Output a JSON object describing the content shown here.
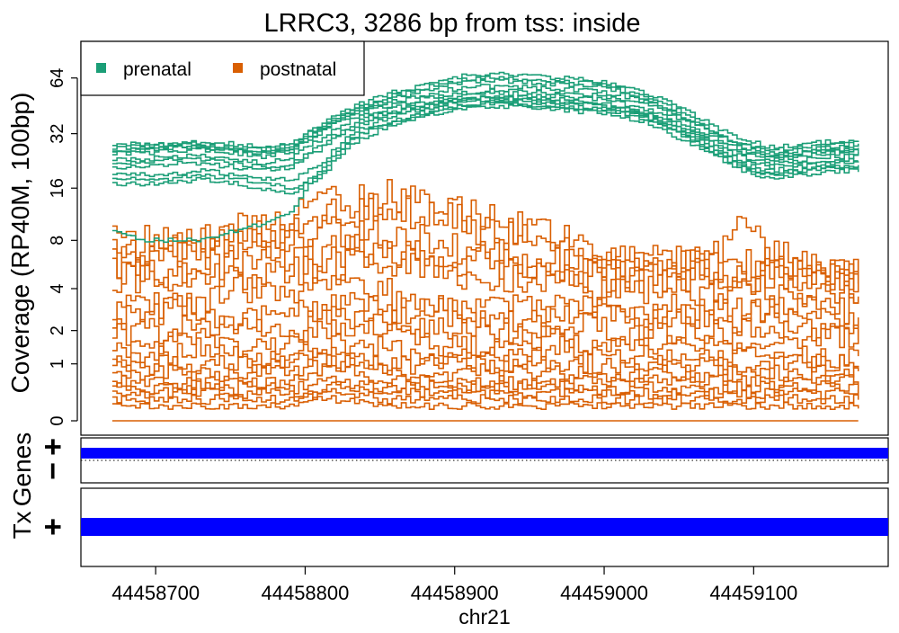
{
  "chart_data": {
    "type": "line",
    "title": "LRRC3, 3286 bp from tss: inside",
    "ylabel": "Coverage (RP40M, 100bp)",
    "xlabel": "chr21",
    "x_range": [
      44458650,
      44459190
    ],
    "x_ticks": [
      44458700,
      44458800,
      44458900,
      44459000,
      44459100
    ],
    "x_tick_labels": [
      "44458700",
      "44458800",
      "44458900",
      "44459000",
      "44459100"
    ],
    "y_scale": "log2(x+1)",
    "y_ticks": [
      0,
      1,
      2,
      4,
      8,
      16,
      32,
      64
    ],
    "y_tick_labels": [
      "0",
      "1",
      "2",
      "4",
      "8",
      "16",
      "32",
      "64"
    ],
    "ylim": [
      0,
      90
    ],
    "x_start": 44458671,
    "x_end": 44459170,
    "legend": {
      "placement": "top-left",
      "entries": [
        {
          "label": "prenatal",
          "color": "#1B9E77"
        },
        {
          "label": "postnatal",
          "color": "#D95F02"
        }
      ]
    },
    "series": [
      {
        "group": "prenatal",
        "color": "#1B9E77",
        "values": [
          27,
          27,
          28,
          28,
          27,
          26,
          28,
          36,
          44,
          52,
          56,
          64,
          66,
          67,
          66,
          64,
          62,
          58,
          52,
          44,
          36,
          30,
          27,
          28,
          29,
          29
        ]
      },
      {
        "group": "prenatal",
        "color": "#1B9E77",
        "values": [
          26,
          26,
          27,
          27,
          26,
          25,
          27,
          34,
          42,
          50,
          54,
          61,
          63,
          64,
          63,
          61,
          60,
          56,
          50,
          42,
          34,
          28,
          25,
          26,
          27,
          27
        ]
      },
      {
        "group": "prenatal",
        "color": "#1B9E77",
        "values": [
          25,
          25,
          26,
          26,
          25,
          24,
          26,
          33,
          41,
          48,
          52,
          59,
          61,
          62,
          61,
          59,
          58,
          54,
          48,
          40,
          33,
          27,
          24,
          25,
          26,
          26
        ]
      },
      {
        "group": "prenatal",
        "color": "#1B9E77",
        "values": [
          28,
          28,
          28,
          29,
          28,
          27,
          29,
          35,
          43,
          47,
          50,
          55,
          57,
          58,
          57,
          56,
          55,
          52,
          47,
          40,
          33,
          28,
          26,
          27,
          28,
          28
        ]
      },
      {
        "group": "prenatal",
        "color": "#1B9E77",
        "values": [
          26,
          26,
          27,
          27,
          26,
          25,
          27,
          33,
          40,
          45,
          48,
          52,
          54,
          55,
          54,
          53,
          52,
          49,
          45,
          38,
          31,
          26,
          24,
          25,
          26,
          26
        ]
      },
      {
        "group": "prenatal",
        "color": "#1B9E77",
        "values": [
          23,
          23,
          24,
          24,
          23,
          22,
          24,
          30,
          38,
          43,
          46,
          50,
          52,
          53,
          52,
          51,
          50,
          47,
          43,
          36,
          30,
          25,
          23,
          24,
          25,
          25
        ]
      },
      {
        "group": "prenatal",
        "color": "#1B9E77",
        "values": [
          22,
          22,
          23,
          23,
          22,
          21,
          22,
          28,
          36,
          41,
          44,
          48,
          50,
          51,
          50,
          49,
          48,
          45,
          41,
          35,
          29,
          24,
          22,
          23,
          24,
          24
        ]
      },
      {
        "group": "prenatal",
        "color": "#1B9E77",
        "values": [
          21,
          21,
          22,
          22,
          21,
          20,
          21,
          27,
          34,
          40,
          43,
          47,
          49,
          50,
          49,
          48,
          47,
          44,
          40,
          34,
          28,
          23,
          21,
          22,
          23,
          23
        ]
      },
      {
        "group": "prenatal",
        "color": "#1B9E77",
        "values": [
          19,
          19,
          19,
          20,
          19,
          18,
          18,
          22,
          32,
          38,
          42,
          46,
          48,
          49,
          48,
          47,
          46,
          43,
          39,
          33,
          27,
          22,
          20,
          21,
          22,
          22
        ]
      },
      {
        "group": "prenatal",
        "color": "#1B9E77",
        "values": [
          18,
          18,
          18,
          19,
          18,
          17,
          16,
          20,
          30,
          36,
          40,
          44,
          46,
          47,
          46,
          45,
          44,
          42,
          38,
          32,
          26,
          21,
          19,
          20,
          21,
          21
        ]
      },
      {
        "group": "prenatal",
        "color": "#1B9E77",
        "values": [
          17,
          17,
          17,
          18,
          17,
          16,
          15,
          19,
          28,
          34,
          38,
          42,
          44,
          45,
          44,
          43,
          42,
          40,
          36,
          30,
          25,
          20,
          18,
          19,
          20,
          20
        ]
      },
      {
        "group": "prenatal",
        "color": "#1B9E77",
        "values": [
          9,
          8,
          8,
          8,
          9,
          10,
          12,
          20,
          30,
          36,
          40,
          44,
          46,
          47,
          46,
          45,
          44,
          42,
          38,
          32,
          26,
          21,
          19,
          20,
          21,
          21
        ]
      },
      {
        "group": "postnatal",
        "color": "#D95F02",
        "values": [
          7,
          7,
          8,
          8,
          9,
          10,
          11,
          13,
          14,
          15,
          14,
          13,
          11,
          10,
          9,
          8,
          7,
          6,
          6,
          6,
          6,
          6,
          6,
          5,
          5,
          5
        ]
      },
      {
        "group": "postnatal",
        "color": "#D95F02",
        "values": [
          6,
          6,
          7,
          7,
          8,
          9,
          10,
          11,
          12,
          12,
          12,
          11,
          10,
          9,
          8,
          7,
          6,
          6,
          5,
          5,
          5,
          5,
          5,
          5,
          5,
          5
        ]
      },
      {
        "group": "postnatal",
        "color": "#D95F02",
        "values": [
          8,
          8,
          8,
          8,
          8,
          8,
          8,
          9,
          9,
          9,
          8,
          8,
          7,
          7,
          6,
          6,
          6,
          6,
          6,
          6,
          6,
          9,
          7,
          6,
          5,
          5
        ]
      },
      {
        "group": "postnatal",
        "color": "#D95F02",
        "values": [
          5,
          5,
          5,
          6,
          6,
          6,
          6,
          7,
          7,
          7,
          7,
          6,
          6,
          6,
          5,
          5,
          5,
          5,
          5,
          5,
          5,
          5,
          5,
          5,
          5,
          5
        ]
      },
      {
        "group": "postnatal",
        "color": "#D95F02",
        "values": [
          5,
          5,
          5,
          5,
          5,
          5,
          5,
          6,
          6,
          6,
          6,
          5,
          5,
          5,
          5,
          5,
          4,
          4,
          4,
          4,
          4,
          4,
          4,
          4,
          4,
          4
        ]
      },
      {
        "group": "postnatal",
        "color": "#D95F02",
        "values": [
          3,
          3,
          3,
          3,
          4,
          4,
          4,
          4,
          4,
          4,
          3,
          3,
          3,
          3,
          3,
          3,
          3,
          3,
          3,
          3,
          3,
          3,
          3,
          3,
          3,
          3
        ]
      },
      {
        "group": "postnatal",
        "color": "#D95F02",
        "values": [
          2.5,
          2.5,
          3,
          3,
          2.5,
          2.5,
          3,
          3,
          3,
          3,
          3,
          3,
          2.5,
          2.5,
          2.5,
          3,
          3,
          2.5,
          2.5,
          2.5,
          2.5,
          2.5,
          3,
          3,
          2.5,
          2.5
        ]
      },
      {
        "group": "postnatal",
        "color": "#D95F02",
        "values": [
          2,
          2,
          2,
          2.5,
          2,
          2,
          2,
          2.5,
          2.5,
          2.5,
          2,
          2,
          2,
          2,
          2,
          2,
          2.5,
          2,
          2,
          2,
          2,
          2,
          2,
          2,
          2,
          2
        ]
      },
      {
        "group": "postnatal",
        "color": "#D95F02",
        "values": [
          1.5,
          1.5,
          1.8,
          1.8,
          1.5,
          1.5,
          1.8,
          2,
          2,
          2,
          1.8,
          1.5,
          1.5,
          1.5,
          1.8,
          1.8,
          1.5,
          1.5,
          1.5,
          1.5,
          1.5,
          1.5,
          1.5,
          1.8,
          1.8,
          1.8
        ]
      },
      {
        "group": "postnatal",
        "color": "#D95F02",
        "values": [
          1.2,
          1.2,
          1.2,
          1.5,
          1.2,
          1.2,
          1.2,
          1.5,
          1.5,
          1.5,
          1.2,
          1.2,
          1.2,
          1.2,
          1.2,
          1.5,
          1.2,
          1.2,
          1.2,
          1.2,
          1.2,
          1.2,
          1.2,
          1.2,
          1.2,
          1.2
        ]
      },
      {
        "group": "postnatal",
        "color": "#D95F02",
        "values": [
          1,
          1,
          1,
          1,
          1,
          1,
          1,
          1.2,
          1.2,
          1,
          1,
          1,
          1,
          1,
          1,
          1,
          1,
          1,
          1,
          1,
          1,
          1,
          1,
          1,
          1,
          1
        ]
      },
      {
        "group": "postnatal",
        "color": "#D95F02",
        "values": [
          0.8,
          0.8,
          0.8,
          0.8,
          0.8,
          0.8,
          0.8,
          1,
          1,
          0.8,
          0.8,
          0.8,
          0.8,
          0.8,
          0.8,
          0.8,
          0.8,
          0.8,
          0.8,
          0.8,
          0.8,
          0.8,
          0.8,
          0.8,
          0.8,
          0.8
        ]
      },
      {
        "group": "postnatal",
        "color": "#D95F02",
        "values": [
          0.6,
          0.6,
          0.6,
          0.6,
          0.6,
          0.6,
          0.6,
          0.8,
          0.8,
          0.6,
          0.6,
          0.6,
          0.6,
          0.6,
          0.6,
          0.6,
          0.6,
          0.6,
          0.6,
          0.6,
          0.6,
          0.6,
          0.6,
          0.6,
          0.6,
          0.6
        ]
      },
      {
        "group": "postnatal",
        "color": "#D95F02",
        "values": [
          0.5,
          0.5,
          0.5,
          0.5,
          0.5,
          0.5,
          0.5,
          0.6,
          0.6,
          0.5,
          0.5,
          0.5,
          0.5,
          0.5,
          0.5,
          0.5,
          0.5,
          0.5,
          0.5,
          0.5,
          0.5,
          0.5,
          0.5,
          0.5,
          0.5,
          0.5
        ]
      },
      {
        "group": "postnatal",
        "color": "#D95F02",
        "values": [
          0.4,
          0.4,
          0.4,
          0.4,
          0.4,
          0.4,
          0.4,
          0.5,
          0.5,
          0.4,
          0.4,
          0.4,
          0.4,
          0.4,
          0.4,
          0.4,
          0.4,
          0.4,
          0.4,
          0.4,
          0.4,
          0.4,
          0.4,
          0.4,
          0.4,
          0.4
        ]
      },
      {
        "group": "postnatal",
        "color": "#D95F02",
        "values": [
          0.3,
          0.3,
          0.3,
          0.3,
          0.3,
          0.3,
          0.3,
          0.4,
          0.4,
          0.3,
          0.3,
          0.3,
          0.3,
          0.3,
          0.3,
          0.3,
          0.3,
          0.3,
          0.3,
          0.3,
          0.3,
          0.3,
          0.3,
          0.3,
          0.3,
          0.3
        ]
      },
      {
        "group": "postnatal",
        "color": "#D95F02",
        "values": [
          0.2,
          0.2,
          0.2,
          0.2,
          0.2,
          0.2,
          0.2,
          0.3,
          0.3,
          0.2,
          0.2,
          0.2,
          0.2,
          0.2,
          0.2,
          0.2,
          0.2,
          0.2,
          0.2,
          0.2,
          0.2,
          0.2,
          0.2,
          0.2,
          0.2,
          0.2
        ]
      },
      {
        "group": "postnatal",
        "color": "#D95F02",
        "values": [
          0,
          0,
          0,
          0,
          0,
          0,
          0,
          0,
          0,
          0,
          0,
          0,
          0,
          0,
          0,
          0,
          0,
          0,
          0,
          0,
          0,
          0,
          0,
          0,
          0,
          0
        ]
      }
    ]
  },
  "genes_track": {
    "label": "Genes",
    "strand_labels": [
      "+",
      "−"
    ],
    "feature_color": "#0000FF",
    "feature_start": 44458650,
    "feature_end": 44459190
  },
  "tx_track": {
    "label": "Tx",
    "strand_label": "+",
    "feature_color": "#0000FF",
    "feature_start": 44458650,
    "feature_end": 44459190
  }
}
